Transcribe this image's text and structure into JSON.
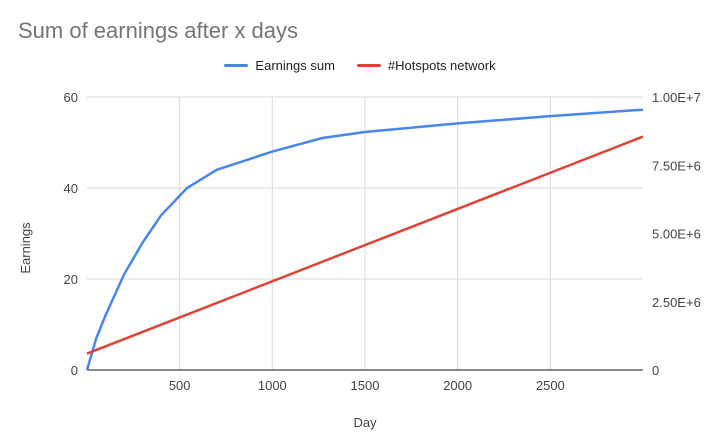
{
  "chart_data": {
    "type": "line",
    "title": "Sum of earnings after x days",
    "xlabel": "Day",
    "ylabel": "Earnings",
    "xlim": [
      0,
      3000
    ],
    "ylim": [
      0,
      60
    ],
    "y2lim": [
      0,
      10000000
    ],
    "x_ticks": [
      500,
      1000,
      1500,
      2000,
      2500
    ],
    "x_tick_labels": [
      "500",
      "1000",
      "1500",
      "2000",
      "2500"
    ],
    "y_ticks": [
      0,
      20,
      40,
      60
    ],
    "y_tick_labels": [
      "0",
      "20",
      "40",
      "60"
    ],
    "y2_ticks": [
      0,
      2500000,
      5000000,
      7500000,
      10000000
    ],
    "y2_tick_labels": [
      "0",
      "2.50E+6",
      "5.00E+6",
      "7.50E+6",
      "1.00E+7"
    ],
    "grid": true,
    "legend_position": "top",
    "series": [
      {
        "name": "Earnings sum",
        "axis": "left",
        "color": "#4a86e8",
        "x": [
          0,
          50,
          100,
          200,
          300,
          400,
          540,
          700,
          1000,
          1270,
          1500,
          2000,
          2500,
          3000
        ],
        "values": [
          0,
          7,
          12,
          21,
          28,
          34,
          40,
          44,
          48,
          51,
          52.3,
          54.2,
          55.8,
          57.2
        ]
      },
      {
        "name": "#Hotspots network",
        "axis": "right",
        "color": "#db4437",
        "x": [
          0,
          3000
        ],
        "values": [
          600000,
          8550000
        ]
      }
    ]
  }
}
